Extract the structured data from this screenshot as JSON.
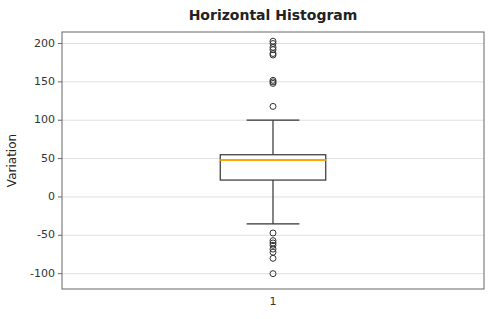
{
  "chart_data": {
    "type": "box",
    "title": "Horizontal Histogram",
    "ylabel": "Variation",
    "categories": [
      "1"
    ],
    "boxes": [
      {
        "med": 48,
        "q1": 22,
        "q3": 55,
        "whislo": -35,
        "whishi": 100,
        "fliers": [
          118,
          148,
          150,
          152,
          185,
          187,
          192,
          195,
          200,
          203,
          -47,
          -57,
          -60,
          -63,
          -68,
          -72,
          -80,
          -100
        ]
      }
    ],
    "color": "orange",
    "ylim": [
      -120,
      215
    ],
    "yticks": [
      -100,
      -50,
      0,
      50,
      100,
      150,
      200
    ],
    "grid": true
  }
}
